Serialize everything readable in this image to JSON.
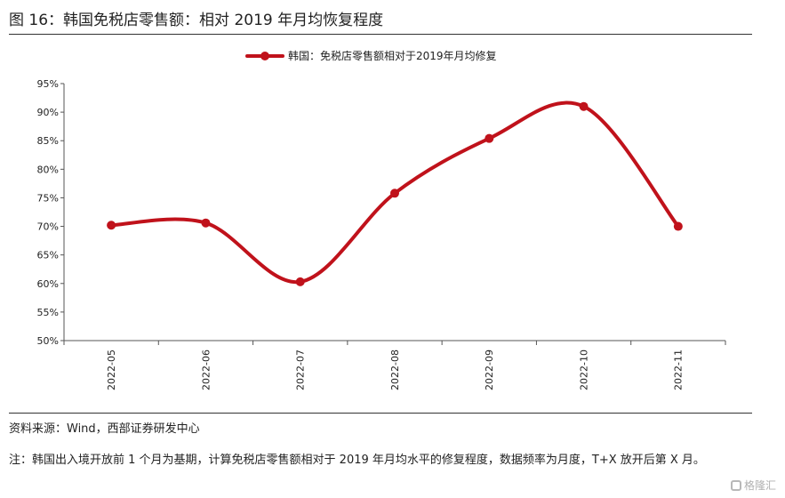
{
  "figure": {
    "title": "图 16：韩国免税店零售额：相对 2019 年月均恢复程度",
    "source": "资料来源：Wind，西部证券研发中心",
    "note": "注：韩国出入境开放前 1 个月为基期，计算免税店零售额相对于 2019 年月均水平的修复程度，数据频率为月度，T+X 放开后第 X 月。",
    "watermark": "格隆汇"
  },
  "chart_data": {
    "type": "line",
    "categories": [
      "2022-05",
      "2022-06",
      "2022-07",
      "2022-08",
      "2022-09",
      "2022-10",
      "2022-11"
    ],
    "series": [
      {
        "name": "韩国：免税店零售额相对于2019年月均修复",
        "values": [
          70.2,
          70.6,
          60.3,
          75.8,
          85.4,
          91.0,
          70.0
        ]
      }
    ],
    "ylim": [
      50,
      95
    ],
    "yticks": [
      "50%",
      "55%",
      "60%",
      "65%",
      "70%",
      "75%",
      "80%",
      "85%",
      "90%",
      "95%"
    ],
    "ytick_values": [
      50,
      55,
      60,
      65,
      70,
      75,
      80,
      85,
      90,
      95
    ],
    "legend": "top-center",
    "grid": false,
    "colors": {
      "line": "#c0121b",
      "axis": "#555555"
    }
  }
}
